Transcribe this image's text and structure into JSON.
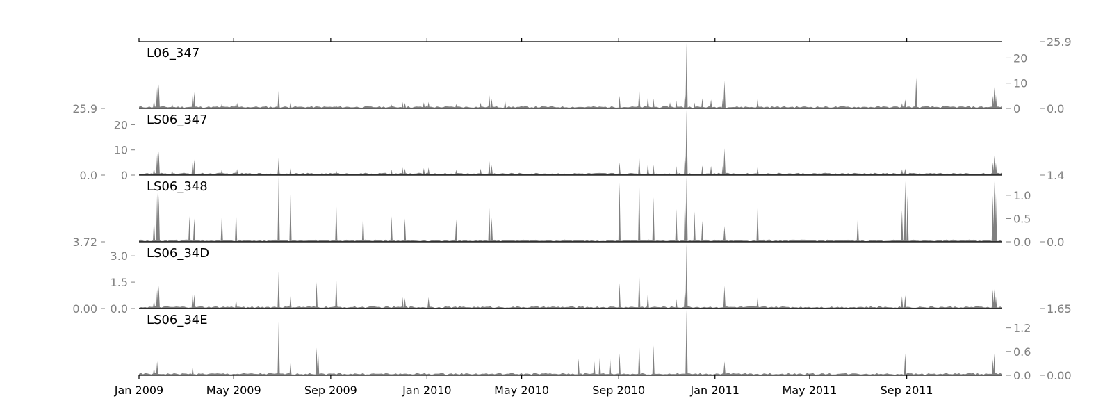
{
  "chart_data": {
    "type": "area",
    "x_axis": {
      "range": [
        "2009-01-01",
        "2011-12-31"
      ],
      "ticks": [
        {
          "value": "2009-01-01",
          "label": "Jan 2009"
        },
        {
          "value": "2009-05-01",
          "label": "May 2009"
        },
        {
          "value": "2009-09-01",
          "label": "Sep 2009"
        },
        {
          "value": "2010-01-01",
          "label": "Jan 2010"
        },
        {
          "value": "2010-05-01",
          "label": "May 2010"
        },
        {
          "value": "2010-09-01",
          "label": "Sep 2010"
        },
        {
          "value": "2011-01-01",
          "label": "Jan 2011"
        },
        {
          "value": "2011-05-01",
          "label": "May 2011"
        },
        {
          "value": "2011-09-01",
          "label": "Sep 2011"
        }
      ]
    },
    "fill_color": "#808080",
    "panels": [
      {
        "name": "L06_347",
        "ylim": [
          0,
          25.9
        ],
        "ticks_inner": {
          "side": "right",
          "values": [
            0,
            10,
            20
          ],
          "labels": [
            "0",
            "10",
            "20"
          ]
        },
        "range_labels": {
          "side": "right",
          "min": "0.0",
          "max": "25.9"
        },
        "spikes": [
          [
            "2009-01-20",
            3.5
          ],
          [
            "2009-01-24",
            8.5
          ],
          [
            "2009-01-26",
            9.6
          ],
          [
            "2009-02-12",
            2.0
          ],
          [
            "2009-03-10",
            6.0
          ],
          [
            "2009-03-12",
            6.4
          ],
          [
            "2009-04-16",
            2.1
          ],
          [
            "2009-05-04",
            2.6
          ],
          [
            "2009-05-06",
            2.3
          ],
          [
            "2009-06-27",
            6.9
          ],
          [
            "2009-07-12",
            2.3
          ],
          [
            "2009-09-08",
            1.3
          ],
          [
            "2009-11-17",
            1.6
          ],
          [
            "2009-12-01",
            2.5
          ],
          [
            "2009-12-04",
            2.2
          ],
          [
            "2009-12-28",
            2.4
          ],
          [
            "2010-01-03",
            2.6
          ],
          [
            "2010-02-07",
            1.8
          ],
          [
            "2010-03-10",
            2.3
          ],
          [
            "2010-03-21",
            5.2
          ],
          [
            "2010-03-24",
            3.8
          ],
          [
            "2010-04-10",
            3.2
          ],
          [
            "2010-09-02",
            5.0
          ],
          [
            "2010-09-27",
            8.0
          ],
          [
            "2010-10-08",
            4.9
          ],
          [
            "2010-10-15",
            3.9
          ],
          [
            "2010-11-05",
            2.4
          ],
          [
            "2010-11-13",
            3.1
          ],
          [
            "2010-11-24",
            7.0
          ],
          [
            "2010-11-26",
            25.9
          ],
          [
            "2010-12-06",
            2.3
          ],
          [
            "2010-12-16",
            4.0
          ],
          [
            "2010-12-27",
            3.5
          ],
          [
            "2011-01-11",
            4.2
          ],
          [
            "2011-01-13",
            11.0
          ],
          [
            "2011-02-24",
            3.8
          ],
          [
            "2011-08-26",
            2.1
          ],
          [
            "2011-08-30",
            3.5
          ],
          [
            "2011-09-13",
            12.3
          ],
          [
            "2011-12-19",
            5.0
          ],
          [
            "2011-12-21",
            8.5
          ],
          [
            "2011-12-23",
            5.5
          ]
        ]
      },
      {
        "name": "LS06_347",
        "ylim": [
          0,
          25.9
        ],
        "ticks_inner": {
          "side": "left",
          "values": [
            0,
            10,
            20
          ],
          "labels": [
            "0",
            "10",
            "20"
          ]
        },
        "range_labels": {
          "side": "left",
          "min": "0.0",
          "max": "25.9"
        },
        "spikes": [
          [
            "2009-01-20",
            3.0
          ],
          [
            "2009-01-24",
            8.5
          ],
          [
            "2009-01-26",
            9.5
          ],
          [
            "2009-02-12",
            2.0
          ],
          [
            "2009-03-10",
            5.8
          ],
          [
            "2009-03-12",
            6.2
          ],
          [
            "2009-04-16",
            2.5
          ],
          [
            "2009-05-04",
            2.8
          ],
          [
            "2009-05-06",
            2.4
          ],
          [
            "2009-06-27",
            6.8
          ],
          [
            "2009-07-12",
            2.7
          ],
          [
            "2009-09-08",
            2.0
          ],
          [
            "2009-11-17",
            2.2
          ],
          [
            "2009-12-01",
            3.0
          ],
          [
            "2009-12-04",
            2.6
          ],
          [
            "2009-12-28",
            2.8
          ],
          [
            "2010-01-03",
            3.0
          ],
          [
            "2010-02-07",
            2.1
          ],
          [
            "2010-03-10",
            2.6
          ],
          [
            "2010-03-21",
            5.5
          ],
          [
            "2010-03-24",
            4.0
          ],
          [
            "2010-09-02",
            5.0
          ],
          [
            "2010-09-27",
            7.8
          ],
          [
            "2010-10-08",
            4.8
          ],
          [
            "2010-10-15",
            4.0
          ],
          [
            "2010-11-13",
            3.5
          ],
          [
            "2010-11-24",
            10.0
          ],
          [
            "2010-11-26",
            25.9
          ],
          [
            "2010-12-16",
            3.8
          ],
          [
            "2010-12-27",
            3.6
          ],
          [
            "2011-01-11",
            4.0
          ],
          [
            "2011-01-13",
            10.7
          ],
          [
            "2011-02-24",
            3.2
          ],
          [
            "2011-08-26",
            2.3
          ],
          [
            "2011-08-30",
            2.6
          ],
          [
            "2011-12-19",
            5.0
          ],
          [
            "2011-12-21",
            7.8
          ],
          [
            "2011-12-23",
            5.0
          ]
        ]
      },
      {
        "name": "LS06_348",
        "ylim": [
          0,
          1.4
        ],
        "ticks_inner": {
          "side": "right",
          "values": [
            0,
            0.5,
            1.0
          ],
          "labels": [
            "0.0",
            "0.5",
            "1.0"
          ]
        },
        "range_labels": {
          "side": "right",
          "min": "0.0",
          "max": "1.4"
        },
        "spikes": [
          [
            "2009-01-20",
            0.5
          ],
          [
            "2009-01-24",
            1.05
          ],
          [
            "2009-01-26",
            1.0
          ],
          [
            "2009-03-06",
            0.55
          ],
          [
            "2009-03-12",
            0.5
          ],
          [
            "2009-04-16",
            0.6
          ],
          [
            "2009-05-04",
            0.7
          ],
          [
            "2009-06-27",
            1.4
          ],
          [
            "2009-07-12",
            1.02
          ],
          [
            "2009-09-08",
            0.85
          ],
          [
            "2009-10-12",
            0.62
          ],
          [
            "2009-11-17",
            0.55
          ],
          [
            "2009-12-04",
            0.5
          ],
          [
            "2010-02-07",
            0.48
          ],
          [
            "2010-03-21",
            0.72
          ],
          [
            "2010-03-24",
            0.52
          ],
          [
            "2010-09-02",
            1.27
          ],
          [
            "2010-09-27",
            1.38
          ],
          [
            "2010-10-15",
            0.95
          ],
          [
            "2010-11-13",
            0.7
          ],
          [
            "2010-11-24",
            1.12
          ],
          [
            "2010-11-26",
            1.4
          ],
          [
            "2010-12-06",
            0.65
          ],
          [
            "2010-12-16",
            0.45
          ],
          [
            "2011-01-13",
            0.34
          ],
          [
            "2011-02-24",
            0.75
          ],
          [
            "2011-07-01",
            0.55
          ],
          [
            "2011-08-26",
            0.68
          ],
          [
            "2011-08-30",
            1.3
          ],
          [
            "2011-09-02",
            1.0
          ],
          [
            "2011-12-19",
            1.0
          ],
          [
            "2011-12-21",
            1.3
          ],
          [
            "2011-12-23",
            1.05
          ]
        ]
      },
      {
        "name": "LS06_34D",
        "ylim": [
          0,
          3.72
        ],
        "ticks_inner": {
          "side": "left",
          "values": [
            0,
            1.5,
            3.0
          ],
          "labels": [
            "0.0",
            "1.5",
            "3.0"
          ]
        },
        "range_labels": {
          "side": "left",
          "min": "0.00",
          "max": "3.72"
        },
        "spikes": [
          [
            "2009-01-20",
            0.5
          ],
          [
            "2009-01-24",
            1.1
          ],
          [
            "2009-01-26",
            1.3
          ],
          [
            "2009-03-10",
            0.9
          ],
          [
            "2009-03-12",
            0.8
          ],
          [
            "2009-05-04",
            0.55
          ],
          [
            "2009-06-27",
            2.1
          ],
          [
            "2009-07-12",
            0.7
          ],
          [
            "2009-08-14",
            1.5
          ],
          [
            "2009-09-08",
            1.8
          ],
          [
            "2009-12-01",
            0.65
          ],
          [
            "2009-12-04",
            0.6
          ],
          [
            "2010-01-03",
            0.65
          ],
          [
            "2010-09-02",
            1.45
          ],
          [
            "2010-09-27",
            2.1
          ],
          [
            "2010-10-08",
            0.95
          ],
          [
            "2010-11-13",
            0.55
          ],
          [
            "2010-11-24",
            1.3
          ],
          [
            "2010-11-26",
            3.72
          ],
          [
            "2011-01-13",
            1.3
          ],
          [
            "2011-02-24",
            0.65
          ],
          [
            "2011-08-26",
            0.7
          ],
          [
            "2011-08-30",
            0.75
          ],
          [
            "2011-12-19",
            1.1
          ],
          [
            "2011-12-21",
            1.1
          ],
          [
            "2011-12-23",
            0.7
          ]
        ]
      },
      {
        "name": "LS06_34E",
        "ylim": [
          0,
          1.65
        ],
        "ticks_inner": {
          "side": "right",
          "values": [
            0,
            0.6,
            1.2
          ],
          "labels": [
            "0.0",
            "0.6",
            "1.2"
          ]
        },
        "range_labels": {
          "side": "right",
          "min": "0.00",
          "max": "1.65"
        },
        "spikes": [
          [
            "2009-01-20",
            0.2
          ],
          [
            "2009-01-24",
            0.35
          ],
          [
            "2009-03-10",
            0.22
          ],
          [
            "2009-06-27",
            1.35
          ],
          [
            "2009-07-12",
            0.3
          ],
          [
            "2009-08-14",
            0.7
          ],
          [
            "2009-08-16",
            0.65
          ],
          [
            "2010-07-12",
            0.42
          ],
          [
            "2010-08-01",
            0.35
          ],
          [
            "2010-08-08",
            0.45
          ],
          [
            "2010-08-21",
            0.48
          ],
          [
            "2010-09-02",
            0.55
          ],
          [
            "2010-09-27",
            0.82
          ],
          [
            "2010-10-15",
            0.75
          ],
          [
            "2010-11-26",
            1.65
          ],
          [
            "2011-01-13",
            0.35
          ],
          [
            "2011-08-30",
            0.55
          ],
          [
            "2011-12-19",
            0.4
          ],
          [
            "2011-12-21",
            0.55
          ]
        ]
      }
    ]
  }
}
